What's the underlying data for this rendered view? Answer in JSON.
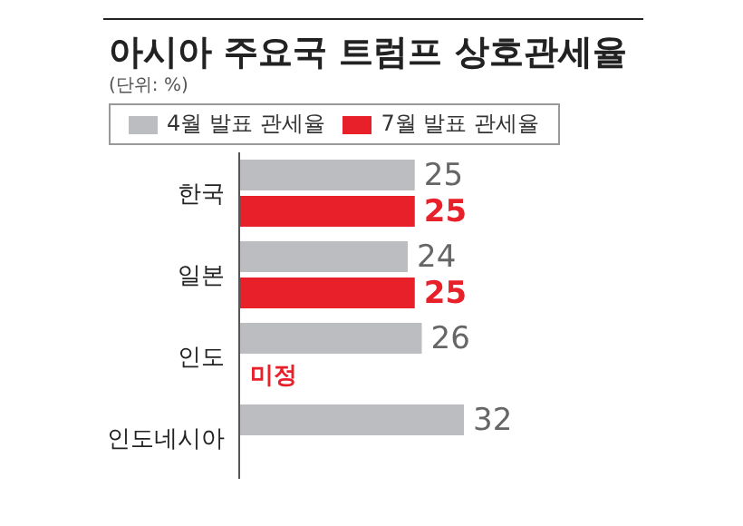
{
  "chart_data": {
    "type": "bar",
    "orientation": "horizontal",
    "title": "아시아 주요국 트럼프 상호관세율",
    "subtitle": "(단위: %)",
    "categories": [
      "한국",
      "일본",
      "인도",
      "인도네시아"
    ],
    "series": [
      {
        "name": "4월 발표 관세율",
        "color": "#bcbdc0",
        "values": [
          25,
          24,
          26,
          32
        ],
        "value_labels": [
          "25",
          "24",
          "26",
          "32"
        ]
      },
      {
        "name": "7월 발표 관세율",
        "color": "#e8202a",
        "values": [
          25,
          25,
          null,
          null
        ],
        "value_labels": [
          "25",
          "25",
          "미정",
          null
        ]
      }
    ],
    "legend": "top"
  }
}
